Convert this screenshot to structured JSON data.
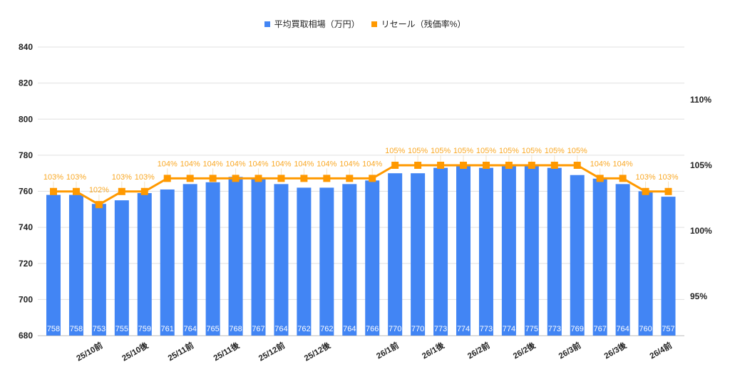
{
  "chart_data": {
    "type": "bar+line",
    "title": "",
    "legend": [
      {
        "name": "平均買取相場（万円）",
        "color": "#4285F4",
        "marker": "square"
      },
      {
        "name": "リセール（残価率%）",
        "color": "#FF9900",
        "marker": "square"
      }
    ],
    "categories": [
      "",
      "",
      "25/10前",
      "",
      "25/10後",
      "",
      "25/11前",
      "",
      "25/11後",
      "",
      "25/12前",
      "",
      "25/12後",
      "",
      "",
      "26/1前",
      "",
      "26/1後",
      "",
      "26/2前",
      "",
      "26/2後",
      "",
      "26/3前",
      "",
      "26/3後",
      "",
      "26/4前"
    ],
    "series": [
      {
        "name": "平均買取相場（万円）",
        "type": "bar",
        "axis": "left",
        "color": "#4285F4",
        "values": [
          758,
          758,
          753,
          755,
          759,
          761,
          764,
          765,
          768,
          767,
          764,
          762,
          762,
          764,
          766,
          770,
          770,
          773,
          774,
          773,
          774,
          775,
          773,
          769,
          767,
          764,
          760,
          757
        ]
      },
      {
        "name": "リセール（残価率%）",
        "type": "line",
        "axis": "right",
        "color": "#FF9900",
        "label_color": "#F9A825",
        "values": [
          103,
          103,
          102,
          103,
          103,
          104,
          104,
          104,
          104,
          104,
          104,
          104,
          104,
          104,
          104,
          105,
          105,
          105,
          105,
          105,
          105,
          105,
          105,
          105,
          104,
          104,
          103,
          103
        ]
      }
    ],
    "left_axis": {
      "ylim": [
        680,
        840
      ],
      "ticks": [
        680,
        700,
        720,
        740,
        760,
        780,
        800,
        820,
        840
      ]
    },
    "right_axis": {
      "ylim": [
        95,
        110
      ],
      "ticks": [
        95,
        100,
        105,
        110
      ],
      "tick_labels": [
        "95%",
        "100%",
        "105%",
        "110%"
      ]
    },
    "grid": true,
    "legend_position": "top",
    "xlabel": "",
    "ylabel": ""
  }
}
